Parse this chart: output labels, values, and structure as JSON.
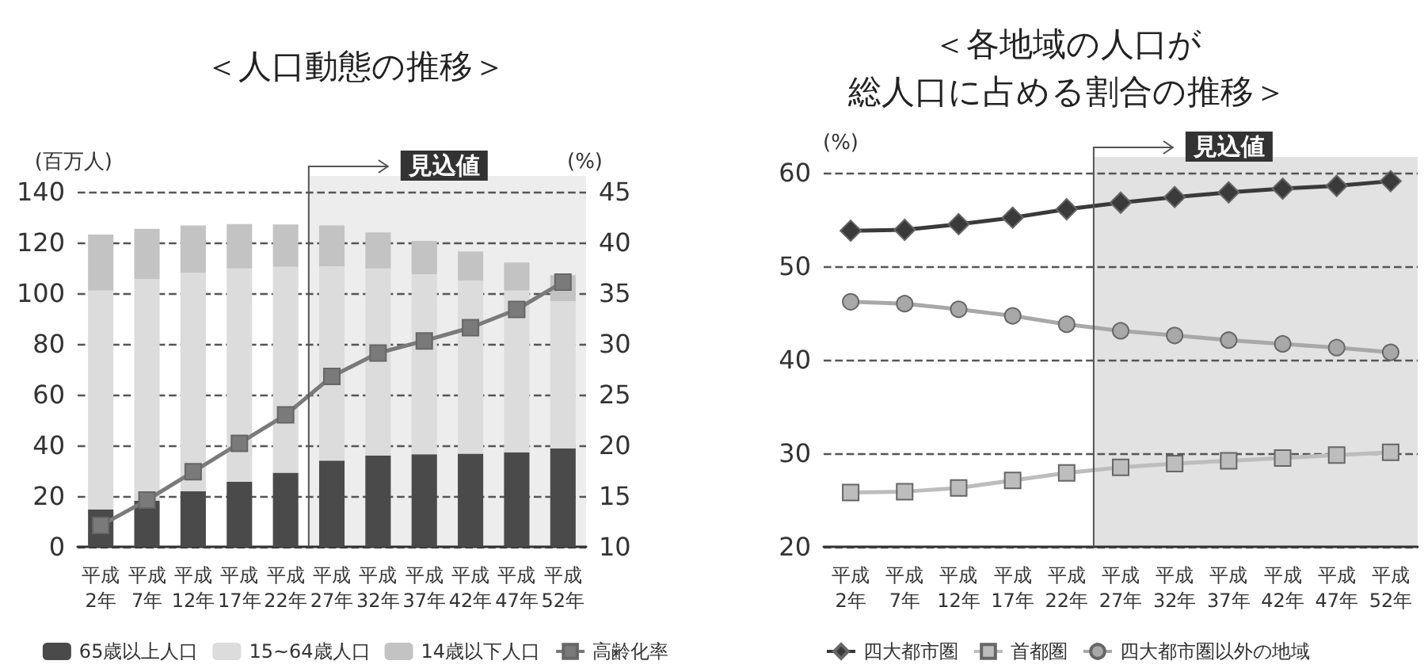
{
  "chart_data": [
    {
      "type": "bar",
      "title": "＜人口動態の推移＞",
      "ylabel": "(百万人)",
      "y2label": "(%)",
      "stacked": true,
      "grid": "y",
      "legend": "bottom",
      "categories": [
        "平成2年",
        "平成7年",
        "平成12年",
        "平成17年",
        "平成22年",
        "平成27年",
        "平成32年",
        "平成37年",
        "平成42年",
        "平成47年",
        "平成52年"
      ],
      "ylim": [
        0,
        140
      ],
      "yticks": [
        0,
        20,
        40,
        60,
        80,
        100,
        120,
        140
      ],
      "y2lim": [
        10,
        45
      ],
      "y2ticks": [
        10,
        15,
        20,
        25,
        30,
        35,
        40,
        45
      ],
      "bands": [
        {
          "axis": "x",
          "from": "平成27年",
          "to": "平成52年",
          "label": "見込値",
          "color": "#ededed"
        }
      ],
      "series": [
        {
          "name": "65歳以上人口",
          "color": "#4a4a4a",
          "values": [
            14.8,
            18.1,
            21.9,
            25.6,
            29.2,
            34.0,
            36.0,
            36.5,
            36.7,
            37.3,
            38.8
          ]
        },
        {
          "name": "15~64歳人口",
          "color": "#dcdcdc",
          "values": [
            86.2,
            87.5,
            86.2,
            84.2,
            81.2,
            76.6,
            73.8,
            71.0,
            68.3,
            63.7,
            58.1
          ]
        },
        {
          "name": "14歳以下人口",
          "color": "#c3c3c3",
          "values": [
            22.1,
            19.8,
            18.6,
            17.5,
            16.7,
            16.1,
            14.2,
            13.1,
            11.5,
            11.1,
            10.2
          ]
        },
        {
          "name": "高齢化率",
          "type": "line",
          "axis": "y2",
          "marker": "square",
          "color": "#7a7a7a",
          "values": [
            12.1,
            14.6,
            17.4,
            20.2,
            23.0,
            26.8,
            29.1,
            30.3,
            31.6,
            33.4,
            36.1
          ]
        }
      ]
    },
    {
      "type": "line",
      "title": "＜各地域の人口が総人口に占める割合の推移＞",
      "ylabel": "(%)",
      "grid": "y",
      "legend": "bottom",
      "categories": [
        "平成2年",
        "平成7年",
        "平成12年",
        "平成17年",
        "平成22年",
        "平成27年",
        "平成32年",
        "平成37年",
        "平成42年",
        "平成47年",
        "平成52年"
      ],
      "ylim": [
        20,
        60
      ],
      "yticks": [
        20,
        30,
        40,
        50,
        60
      ],
      "bands": [
        {
          "axis": "x",
          "from": "平成27年",
          "to": "平成52年",
          "label": "見込値",
          "color": "#e2e2e2"
        }
      ],
      "series": [
        {
          "name": "四大都市圏",
          "marker": "diamond",
          "color": "#3a3a3a",
          "values": [
            53.8,
            53.9,
            54.5,
            55.2,
            56.1,
            56.8,
            57.4,
            57.9,
            58.3,
            58.6,
            59.1
          ]
        },
        {
          "name": "首都圏",
          "marker": "square",
          "color": "#bdbdbd",
          "values": [
            25.8,
            25.9,
            26.3,
            27.1,
            27.9,
            28.5,
            28.9,
            29.2,
            29.5,
            29.8,
            30.1
          ]
        },
        {
          "name": "四大都市圏以外の地域",
          "marker": "circle",
          "color": "#a8a8a8",
          "values": [
            46.2,
            46.0,
            45.4,
            44.7,
            43.8,
            43.1,
            42.6,
            42.1,
            41.7,
            41.3,
            40.8
          ]
        }
      ]
    }
  ]
}
